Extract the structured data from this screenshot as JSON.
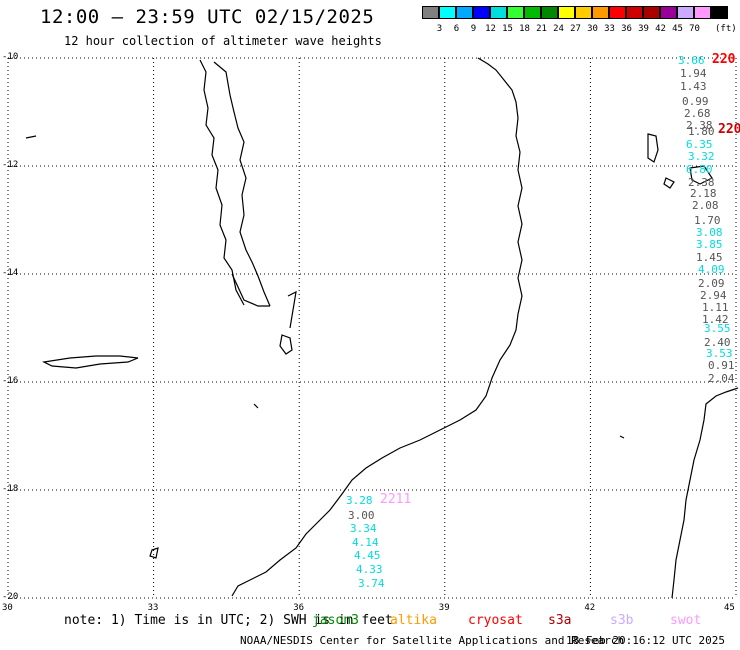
{
  "header": {
    "title": "12:00 – 23:59 UTC 02/15/2025",
    "subtitle": "12 hour collection of altimeter wave heights"
  },
  "legend": {
    "colors": [
      "#808080",
      "#00ffff",
      "#00aaff",
      "#0000ff",
      "#00dddd",
      "#33ff33",
      "#00bb00",
      "#008800",
      "#ffff00",
      "#ffcc00",
      "#ff9900",
      "#ff0000",
      "#cc0000",
      "#aa0000",
      "#990099",
      "#ccaaff",
      "#ff99ff",
      "#000000"
    ],
    "ticks": [
      "3",
      "6",
      "9",
      "12",
      "15",
      "18",
      "21",
      "24",
      "27",
      "30",
      "33",
      "36",
      "39",
      "42",
      "45",
      "70"
    ],
    "unit": "(ft)"
  },
  "axes": {
    "lon_labels": [
      "30",
      "33",
      "36",
      "39",
      "42",
      "45"
    ],
    "lat_labels": [
      "-10",
      "-12",
      "-14",
      "-16",
      "-18",
      "-20"
    ]
  },
  "tracks": {
    "east": {
      "values": [
        {
          "v": "3.66",
          "c": "#00dddd"
        },
        {
          "v": "1.94",
          "c": "#555555"
        },
        {
          "v": "1.43",
          "c": "#555555"
        },
        {
          "v": "0.99",
          "c": "#555555"
        },
        {
          "v": "2.68",
          "c": "#555555"
        },
        {
          "v": "2.38",
          "c": "#555555"
        },
        {
          "v": "1.80",
          "c": "#555555"
        },
        {
          "v": "6.35",
          "c": "#00dddd"
        },
        {
          "v": "3.32",
          "c": "#00dddd"
        },
        {
          "v": "6.80",
          "c": "#00dddd"
        },
        {
          "v": "2.38",
          "c": "#555555"
        },
        {
          "v": "2.18",
          "c": "#555555"
        },
        {
          "v": "2.08",
          "c": "#555555"
        },
        {
          "v": "1.70",
          "c": "#555555"
        },
        {
          "v": "3.08",
          "c": "#00dddd"
        },
        {
          "v": "3.85",
          "c": "#00dddd"
        },
        {
          "v": "1.45",
          "c": "#555555"
        },
        {
          "v": "4.09",
          "c": "#00dddd"
        },
        {
          "v": "2.09",
          "c": "#555555"
        },
        {
          "v": "2.94",
          "c": "#555555"
        },
        {
          "v": "1.11",
          "c": "#555555"
        },
        {
          "v": "1.42",
          "c": "#555555"
        },
        {
          "v": "3.55",
          "c": "#00dddd"
        },
        {
          "v": "2.40",
          "c": "#555555"
        },
        {
          "v": "3.53",
          "c": "#00dddd"
        },
        {
          "v": "0.91",
          "c": "#555555"
        },
        {
          "v": "2.04",
          "c": "#555555"
        }
      ],
      "pass_ids": [
        {
          "id": "220",
          "c": "#ff0000"
        },
        {
          "id": "220",
          "c": "#cc0000"
        }
      ]
    },
    "south": {
      "values": [
        {
          "v": "3.28",
          "c": "#00dddd"
        },
        {
          "v": "3.00",
          "c": "#555555"
        },
        {
          "v": "3.34",
          "c": "#00dddd"
        },
        {
          "v": "4.14",
          "c": "#00dddd"
        },
        {
          "v": "4.45",
          "c": "#00dddd"
        },
        {
          "v": "4.33",
          "c": "#00dddd"
        },
        {
          "v": "3.74",
          "c": "#00dddd"
        }
      ],
      "pass_id": {
        "id": "2211",
        "c": "#ff99ff"
      }
    }
  },
  "footer": {
    "note": "note: 1) Time is in UTC; 2) SWH is in feet",
    "satellites": [
      {
        "name": "jason3",
        "c": "#008800"
      },
      {
        "name": "altika",
        "c": "#ff9900"
      },
      {
        "name": "cryosat",
        "c": "#ff0000"
      },
      {
        "name": "s3a",
        "c": "#aa0000"
      },
      {
        "name": "s3b",
        "c": "#ccaaff"
      },
      {
        "name": "swot",
        "c": "#ff99ff"
      }
    ],
    "credit": "NOAA/NESDIS Center for Satellite Applications and Research",
    "timestamp": "18 Feb 20:16:12 UTC 2025"
  }
}
